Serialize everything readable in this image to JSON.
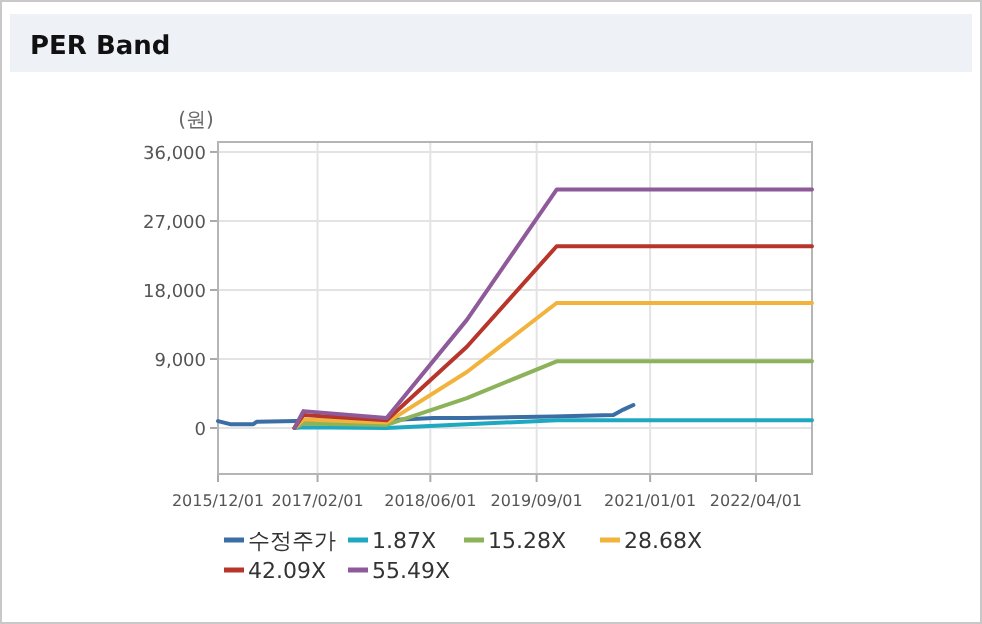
{
  "chart_data": {
    "type": "line",
    "title": "PER Band",
    "ylabel": "(원)",
    "xlim": [
      "2015-12-01",
      "2022-11-28"
    ],
    "ylim": [
      -6000,
      37300
    ],
    "xticks": [
      {
        "value": "2015-12-01",
        "label": "2015/12/01"
      },
      {
        "value": "2017-02-01",
        "label": "2017/02/01"
      },
      {
        "value": "2018-06-01",
        "label": "2018/06/01"
      },
      {
        "value": "2019-09-01",
        "label": "2019/09/01"
      },
      {
        "value": "2021-01-01",
        "label": "2021/01/01"
      },
      {
        "value": "2022-04-01",
        "label": "2022/04/01"
      }
    ],
    "yticks": [
      {
        "value": 0,
        "label": "0"
      },
      {
        "value": 9000,
        "label": "9,000"
      },
      {
        "value": 18000,
        "label": "18,000"
      },
      {
        "value": 27000,
        "label": "27,000"
      },
      {
        "value": 36000,
        "label": "36,000"
      }
    ],
    "grid": true,
    "legend": "bottom",
    "series": [
      {
        "name": "수정주가",
        "color": "#3a6ea5",
        "x": [
          "2015-12-01",
          "2016-01-22",
          "2016-05-01",
          "2016-05-15",
          "2016-11-03",
          "2017-11-25",
          "2018-06-14",
          "2018-11-04",
          "2019-11-12",
          "2020-07-27",
          "2020-09-08",
          "2020-10-21"
        ],
        "values": [
          900,
          500,
          500,
          800,
          900,
          1000,
          1300,
          1300,
          1500,
          1700,
          2400,
          3000
        ]
      },
      {
        "name": "1.87X",
        "color": "#1fa9c1",
        "x": [
          "2016-10-25",
          "2016-12-02",
          "2017-11-25",
          "2018-11-05",
          "2019-11-26",
          "2022-11-28"
        ],
        "values": [
          0,
          100,
          0,
          500,
          1000,
          1000
        ]
      },
      {
        "name": "15.28X",
        "color": "#8cb25a",
        "x": [
          "2016-10-25",
          "2016-12-02",
          "2017-11-25",
          "2018-11-05",
          "2019-11-26",
          "2022-11-28"
        ],
        "values": [
          0,
          600,
          400,
          3900,
          8700,
          8700
        ]
      },
      {
        "name": "28.68X",
        "color": "#f2b33d",
        "x": [
          "2016-10-25",
          "2016-12-02",
          "2017-11-25",
          "2018-11-05",
          "2019-11-26",
          "2022-11-28"
        ],
        "values": [
          0,
          1100,
          700,
          7300,
          16300,
          16300
        ]
      },
      {
        "name": "42.09X",
        "color": "#b8352b",
        "x": [
          "2016-10-25",
          "2016-12-02",
          "2017-11-25",
          "2018-11-05",
          "2019-11-26",
          "2022-11-28"
        ],
        "values": [
          0,
          1700,
          1000,
          10600,
          23700,
          23700
        ]
      },
      {
        "name": "55.49X",
        "color": "#8e5a9a",
        "x": [
          "2016-10-25",
          "2016-12-02",
          "2017-11-25",
          "2018-11-05",
          "2019-11-26",
          "2022-11-28"
        ],
        "values": [
          0,
          2200,
          1300,
          14100,
          31100,
          31100
        ]
      }
    ]
  }
}
